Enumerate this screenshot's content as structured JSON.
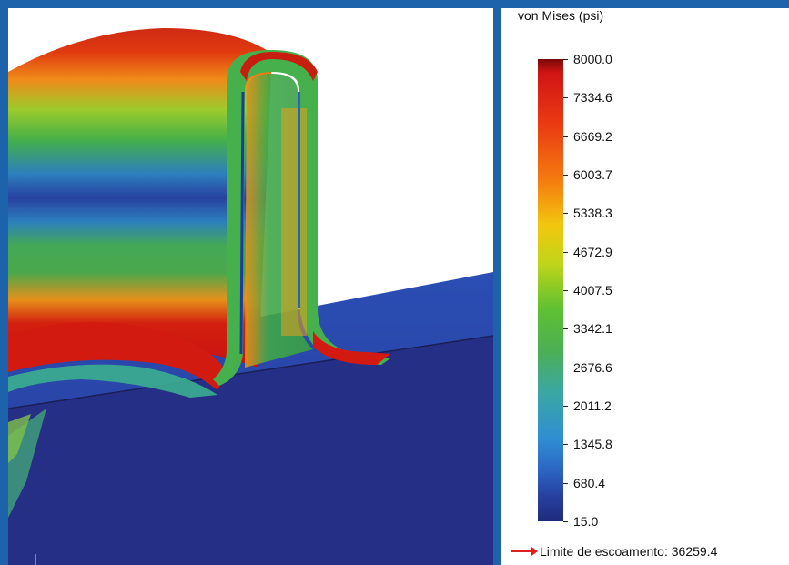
{
  "legend": {
    "title": "von Mises (psi)",
    "ticks": [
      "8000.0",
      "7334.6",
      "6669.2",
      "6003.7",
      "5338.3",
      "4672.9",
      "4007.5",
      "3342.1",
      "2676.6",
      "2011.2",
      "1345.8",
      "680.4",
      "15.0"
    ],
    "yield_label": "Limite de escoamento: 36259.4",
    "colors": {
      "max": "#d11414",
      "high": "#f47a10",
      "mid_high": "#f2c70e",
      "mid": "#4caf52",
      "mid_low": "#2f8fd2",
      "min": "#1e2b7c",
      "yield_arrow": "#e02020"
    }
  },
  "frame": {
    "border_color": "#1d63ab"
  }
}
